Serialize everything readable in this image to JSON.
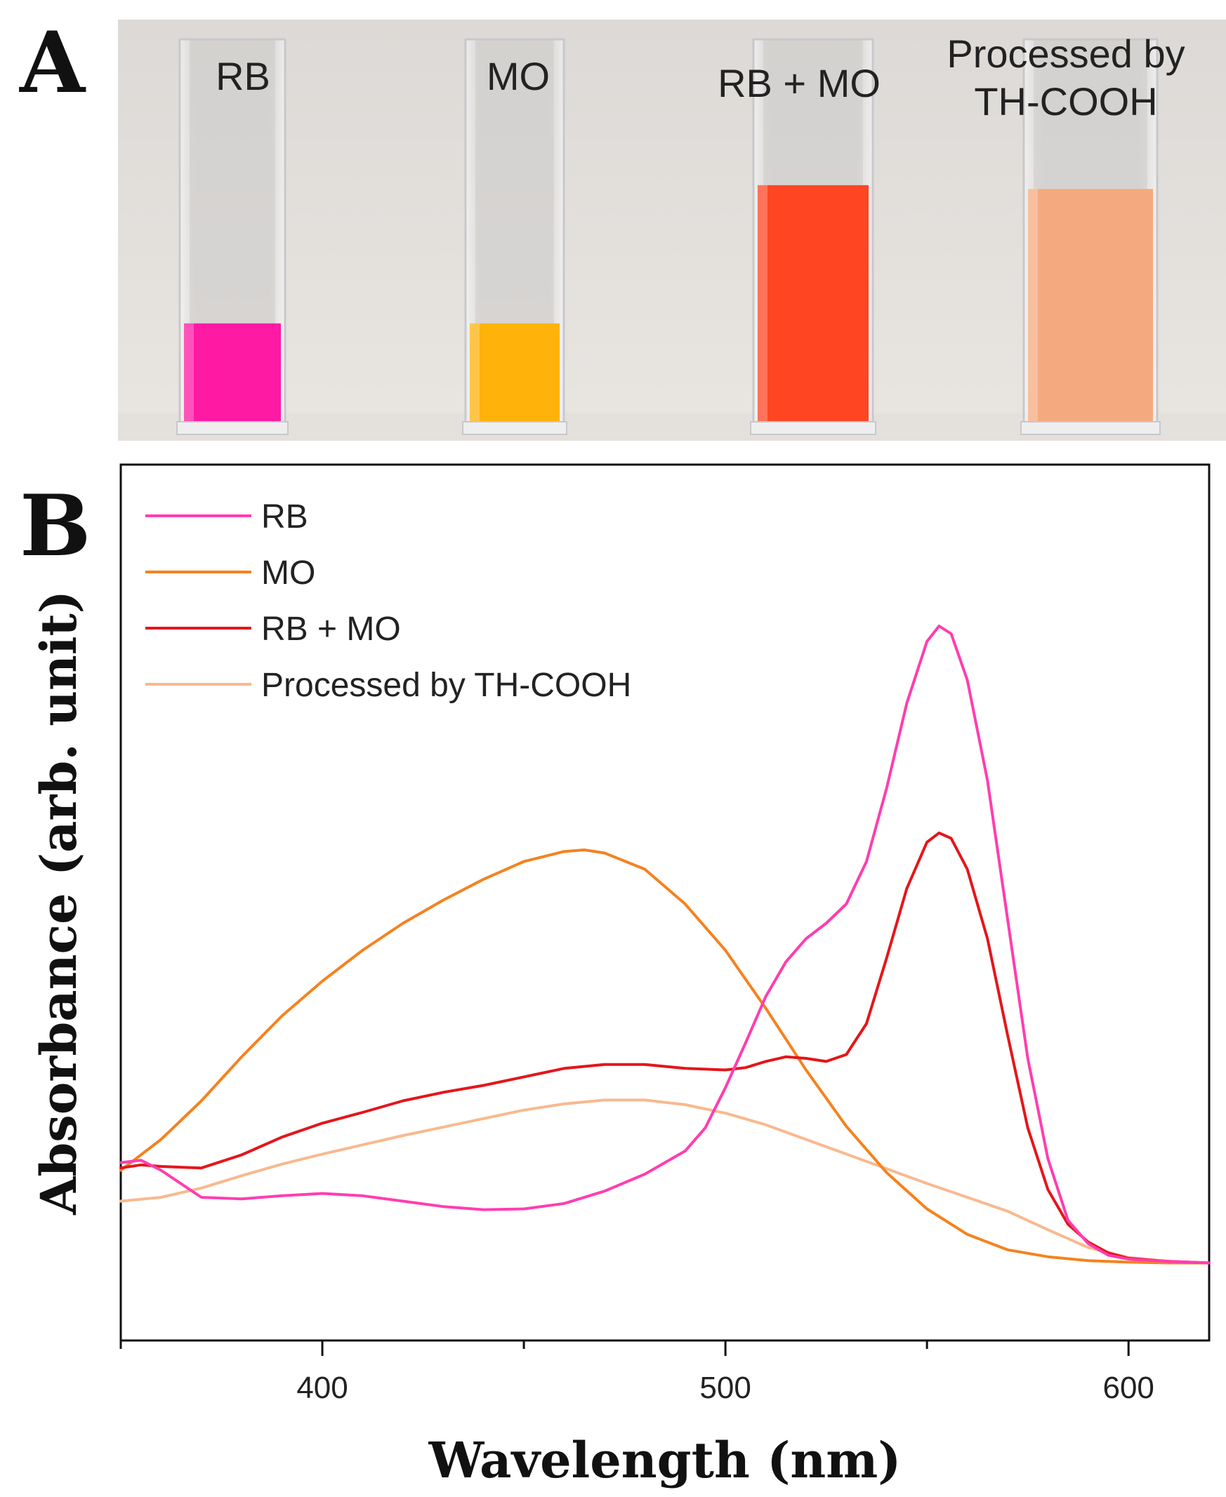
{
  "panel_a": {
    "letter": "A",
    "cuvettes": [
      {
        "label_lines": [
          "RB"
        ],
        "color": "#ff1aa3",
        "fill_level": 0.26
      },
      {
        "label_lines": [
          "MO"
        ],
        "color": "#ffb20a",
        "fill_level": 0.26
      },
      {
        "label_lines": [
          "RB + MO"
        ],
        "color": "#ff4522",
        "fill_level": 0.62
      },
      {
        "label_lines": [
          "Processed  by",
          "TH-COOH"
        ],
        "color": "#f4aa7e",
        "fill_level": 0.61
      }
    ]
  },
  "panel_b": {
    "letter": "B"
  },
  "chart_data": {
    "type": "line",
    "title": "",
    "xlabel": "Wavelength (nm)",
    "ylabel": "Absorbance (arb. unit)",
    "xlim": [
      350,
      620
    ],
    "ylim": [
      0,
      1
    ],
    "xticks": [
      400,
      500,
      600
    ],
    "xtick_labels": [
      "400",
      "500",
      "600"
    ],
    "x_minor_ticks": [
      350,
      450,
      550
    ],
    "yticks_shown": false,
    "grid": false,
    "legend_position": "top-left",
    "series": [
      {
        "name": "RB",
        "color": "#ff3db0",
        "points": [
          [
            350,
            0.165
          ],
          [
            355,
            0.168
          ],
          [
            360,
            0.155
          ],
          [
            370,
            0.12
          ],
          [
            380,
            0.118
          ],
          [
            390,
            0.122
          ],
          [
            400,
            0.125
          ],
          [
            410,
            0.122
          ],
          [
            420,
            0.115
          ],
          [
            430,
            0.108
          ],
          [
            440,
            0.104
          ],
          [
            450,
            0.105
          ],
          [
            460,
            0.112
          ],
          [
            470,
            0.128
          ],
          [
            480,
            0.15
          ],
          [
            490,
            0.18
          ],
          [
            495,
            0.21
          ],
          [
            500,
            0.262
          ],
          [
            505,
            0.32
          ],
          [
            510,
            0.38
          ],
          [
            515,
            0.425
          ],
          [
            520,
            0.455
          ],
          [
            525,
            0.475
          ],
          [
            530,
            0.5
          ],
          [
            535,
            0.555
          ],
          [
            540,
            0.65
          ],
          [
            545,
            0.76
          ],
          [
            550,
            0.84
          ],
          [
            553,
            0.86
          ],
          [
            556,
            0.85
          ],
          [
            560,
            0.79
          ],
          [
            565,
            0.66
          ],
          [
            570,
            0.48
          ],
          [
            575,
            0.3
          ],
          [
            580,
            0.17
          ],
          [
            585,
            0.09
          ],
          [
            590,
            0.06
          ],
          [
            595,
            0.045
          ],
          [
            600,
            0.04
          ],
          [
            610,
            0.037
          ],
          [
            620,
            0.035
          ]
        ]
      },
      {
        "name": "MO",
        "color": "#f5821f",
        "points": [
          [
            350,
            0.155
          ],
          [
            360,
            0.195
          ],
          [
            370,
            0.245
          ],
          [
            380,
            0.302
          ],
          [
            390,
            0.355
          ],
          [
            400,
            0.4
          ],
          [
            410,
            0.44
          ],
          [
            420,
            0.475
          ],
          [
            430,
            0.505
          ],
          [
            440,
            0.532
          ],
          [
            450,
            0.555
          ],
          [
            460,
            0.568
          ],
          [
            465,
            0.57
          ],
          [
            470,
            0.566
          ],
          [
            480,
            0.545
          ],
          [
            490,
            0.5
          ],
          [
            500,
            0.44
          ],
          [
            510,
            0.365
          ],
          [
            520,
            0.285
          ],
          [
            530,
            0.212
          ],
          [
            540,
            0.152
          ],
          [
            550,
            0.105
          ],
          [
            560,
            0.072
          ],
          [
            570,
            0.052
          ],
          [
            580,
            0.043
          ],
          [
            590,
            0.038
          ],
          [
            600,
            0.036
          ],
          [
            610,
            0.035
          ],
          [
            620,
            0.035
          ]
        ]
      },
      {
        "name": "RB + MO",
        "color": "#e4161b",
        "points": [
          [
            350,
            0.158
          ],
          [
            355,
            0.162
          ],
          [
            360,
            0.16
          ],
          [
            370,
            0.158
          ],
          [
            380,
            0.175
          ],
          [
            390,
            0.198
          ],
          [
            400,
            0.216
          ],
          [
            410,
            0.23
          ],
          [
            420,
            0.245
          ],
          [
            430,
            0.256
          ],
          [
            440,
            0.265
          ],
          [
            450,
            0.276
          ],
          [
            460,
            0.287
          ],
          [
            470,
            0.292
          ],
          [
            480,
            0.292
          ],
          [
            490,
            0.287
          ],
          [
            500,
            0.285
          ],
          [
            505,
            0.288
          ],
          [
            510,
            0.296
          ],
          [
            515,
            0.302
          ],
          [
            520,
            0.3
          ],
          [
            525,
            0.296
          ],
          [
            530,
            0.305
          ],
          [
            535,
            0.345
          ],
          [
            540,
            0.43
          ],
          [
            545,
            0.52
          ],
          [
            550,
            0.58
          ],
          [
            553,
            0.592
          ],
          [
            556,
            0.585
          ],
          [
            560,
            0.545
          ],
          [
            565,
            0.455
          ],
          [
            570,
            0.33
          ],
          [
            575,
            0.21
          ],
          [
            580,
            0.13
          ],
          [
            585,
            0.085
          ],
          [
            590,
            0.062
          ],
          [
            595,
            0.048
          ],
          [
            600,
            0.041
          ],
          [
            610,
            0.037
          ],
          [
            620,
            0.035
          ]
        ]
      },
      {
        "name": "Processed by TH-COOH",
        "color": "#f8b98f",
        "points": [
          [
            350,
            0.115
          ],
          [
            360,
            0.12
          ],
          [
            370,
            0.132
          ],
          [
            380,
            0.148
          ],
          [
            390,
            0.163
          ],
          [
            400,
            0.176
          ],
          [
            410,
            0.188
          ],
          [
            420,
            0.2
          ],
          [
            430,
            0.211
          ],
          [
            440,
            0.222
          ],
          [
            450,
            0.233
          ],
          [
            460,
            0.241
          ],
          [
            470,
            0.246
          ],
          [
            480,
            0.246
          ],
          [
            490,
            0.24
          ],
          [
            500,
            0.229
          ],
          [
            510,
            0.214
          ],
          [
            520,
            0.195
          ],
          [
            530,
            0.176
          ],
          [
            540,
            0.157
          ],
          [
            550,
            0.138
          ],
          [
            560,
            0.12
          ],
          [
            570,
            0.102
          ],
          [
            580,
            0.078
          ],
          [
            590,
            0.055
          ],
          [
            600,
            0.042
          ],
          [
            610,
            0.037
          ],
          [
            620,
            0.035
          ]
        ]
      }
    ]
  }
}
